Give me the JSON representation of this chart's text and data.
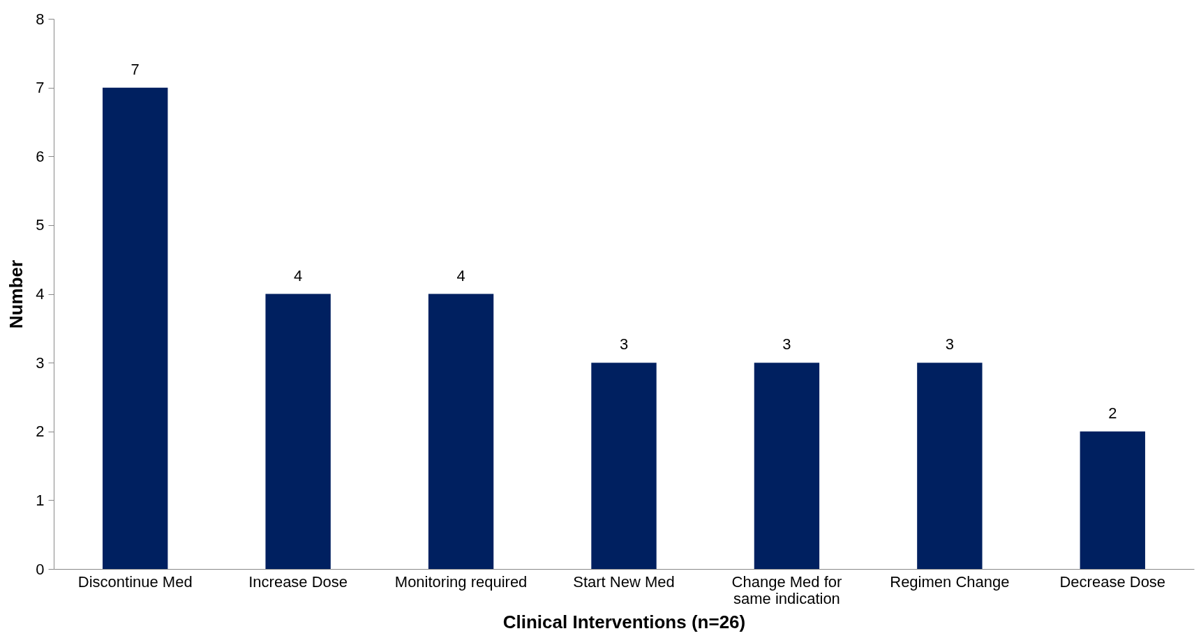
{
  "chart_data": {
    "type": "bar",
    "xlabel": "Clinical Interventions (n=26)",
    "ylabel": "Number",
    "categories": [
      "Discontinue Med",
      "Increase Dose",
      "Monitoring required",
      "Start New Med",
      "Change Med for same indication",
      "Regimen Change",
      "Decrease Dose"
    ],
    "values": [
      7,
      4,
      4,
      3,
      3,
      3,
      2
    ],
    "color": "#002060",
    "ylim": [
      0,
      8
    ],
    "yticks": [
      0,
      1,
      2,
      3,
      4,
      5,
      6,
      7,
      8
    ],
    "grid": false,
    "data_labels": true
  }
}
